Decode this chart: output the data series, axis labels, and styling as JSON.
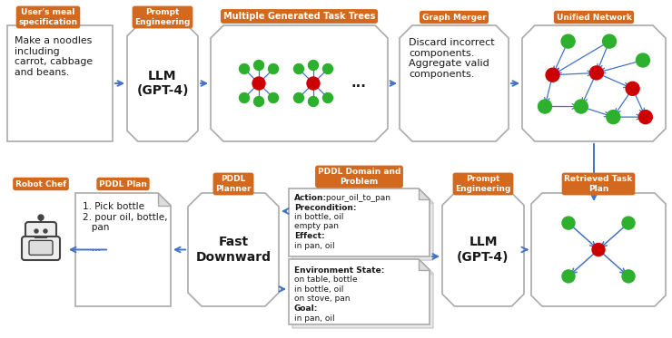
{
  "bg_color": "#ffffff",
  "orange_bg": "#d2691e",
  "arrow_color": "#4472c4",
  "green_node": "#2db02d",
  "red_node": "#cc0000",
  "border_c": "#aaaaaa",
  "text_c": "#1a1a1a",
  "meal_text": "Make a noodles\nincluding\ncarrot, cabbage\nand beans.",
  "llm_text": "LLM\n(GPT-4)",
  "graph_merger_text": "Discard incorrect\ncomponents.\nAggregate valid\ncomponents.",
  "pddl_plan_text": "1. Pick bottle\n2. pour oil, bottle,\n   pan\n\n   ...",
  "fast_downward_text": "Fast\nDownward",
  "llm2_text": "LLM\n(GPT-4)"
}
